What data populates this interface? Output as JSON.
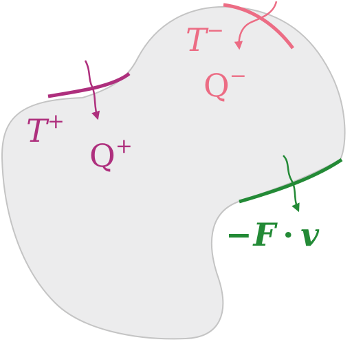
{
  "colors": {
    "region_fill": "#ececed",
    "region_stroke": "#c4c4c4",
    "hot": "#ae2f7d",
    "cold": "#ec6c84",
    "work": "#238a36"
  },
  "labels": {
    "hot_T": "T",
    "hot_T_sup": "+",
    "hot_Q": "Q",
    "hot_Q_sup": "+",
    "cold_T": "T",
    "cold_T_sup": "−",
    "cold_Q": "Q",
    "cold_Q_sup": "−",
    "work_minus": "−",
    "work_F": "F",
    "work_dot": "·",
    "work_v": "v"
  }
}
